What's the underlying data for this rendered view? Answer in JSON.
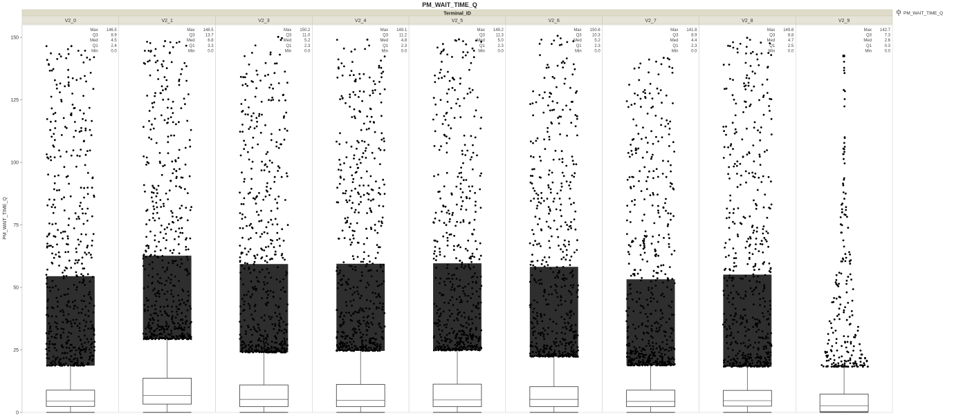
{
  "chart_data": {
    "type": "box",
    "title": "PM_WAIT_TIME_Q",
    "group_header": "Terminal_ID",
    "ylabel": "PM_WAIT_TIME_Q",
    "ylim": [
      0,
      155
    ],
    "yticks": [
      0,
      25,
      50,
      75,
      100,
      125,
      150
    ],
    "legend": {
      "label": "PM_WAIT_TIME_Q",
      "position": "top-right",
      "icon": "box-plot-icon"
    },
    "stat_labels": [
      "Max",
      "Q3",
      "Med",
      "Q1",
      "Min"
    ],
    "categories": [
      "V2_0",
      "V2_1",
      "V2_3",
      "V2_4",
      "V2_5",
      "V2_6",
      "V2_7",
      "V2_8",
      "V2_9"
    ],
    "groups": [
      {
        "name": "V2_0",
        "max": "146.5",
        "q3": "8.9",
        "med": "4.5",
        "q1": "2.4",
        "min": "0.0",
        "upper_fence": 18.7
      },
      {
        "name": "V2_1",
        "max": "148.5",
        "q3": "13.7",
        "med": "6.8",
        "q1": "3.3",
        "min": "0.0",
        "upper_fence": 29.3
      },
      {
        "name": "V2_3",
        "max": "150.2",
        "q3": "11.0",
        "med": "5.2",
        "q1": "2.3",
        "min": "0.0",
        "upper_fence": 24.0
      },
      {
        "name": "V2_4",
        "max": "149.1",
        "q3": "11.2",
        "med": "4.8",
        "q1": "2.3",
        "min": "0.0",
        "upper_fence": 24.6
      },
      {
        "name": "V2_5",
        "max": "149.2",
        "q3": "11.3",
        "med": "5.0",
        "q1": "2.3",
        "min": "0.0",
        "upper_fence": 24.8
      },
      {
        "name": "V2_6",
        "max": "150.6",
        "q3": "10.3",
        "med": "5.2",
        "q1": "2.3",
        "min": "0.0",
        "upper_fence": 22.3
      },
      {
        "name": "V2_7",
        "max": "141.8",
        "q3": "8.9",
        "med": "4.4",
        "q1": "2.3",
        "min": "0.0",
        "upper_fence": 18.8
      },
      {
        "name": "V2_8",
        "max": "149.8",
        "q3": "8.8",
        "med": "4.7",
        "q1": "2.5",
        "min": "0.0",
        "upper_fence": 18.3
      },
      {
        "name": "V2_9",
        "max": "142.7",
        "q3": "7.3",
        "med": "2.6",
        "q1": "0.3",
        "min": "0.0",
        "upper_fence": 18.3
      }
    ]
  }
}
